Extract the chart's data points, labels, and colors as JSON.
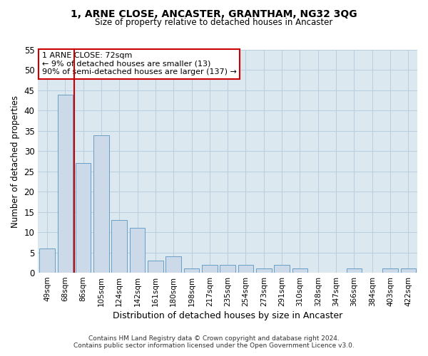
{
  "title": "1, ARNE CLOSE, ANCASTER, GRANTHAM, NG32 3QG",
  "subtitle": "Size of property relative to detached houses in Ancaster",
  "xlabel": "Distribution of detached houses by size in Ancaster",
  "ylabel": "Number of detached properties",
  "categories": [
    "49sqm",
    "68sqm",
    "86sqm",
    "105sqm",
    "124sqm",
    "142sqm",
    "161sqm",
    "180sqm",
    "198sqm",
    "217sqm",
    "235sqm",
    "254sqm",
    "273sqm",
    "291sqm",
    "310sqm",
    "328sqm",
    "347sqm",
    "366sqm",
    "384sqm",
    "403sqm",
    "422sqm"
  ],
  "values": [
    6,
    44,
    27,
    34,
    13,
    11,
    3,
    4,
    1,
    2,
    2,
    2,
    1,
    2,
    1,
    0,
    0,
    1,
    0,
    1,
    1
  ],
  "bar_color": "#ccd9e8",
  "bar_edge_color": "#6a9ec5",
  "reference_line_x": 1.5,
  "reference_line_color": "#cc0000",
  "annotation_text": "1 ARNE CLOSE: 72sqm\n← 9% of detached houses are smaller (13)\n90% of semi-detached houses are larger (137) →",
  "annotation_box_color": "#ffffff",
  "annotation_box_edge_color": "#cc0000",
  "background_color": "#ffffff",
  "plot_bg_color": "#dce8f0",
  "grid_color": "#b8cfe0",
  "footer_line1": "Contains HM Land Registry data © Crown copyright and database right 2024.",
  "footer_line2": "Contains public sector information licensed under the Open Government Licence v3.0.",
  "ylim": [
    0,
    55
  ],
  "yticks": [
    0,
    5,
    10,
    15,
    20,
    25,
    30,
    35,
    40,
    45,
    50,
    55
  ]
}
